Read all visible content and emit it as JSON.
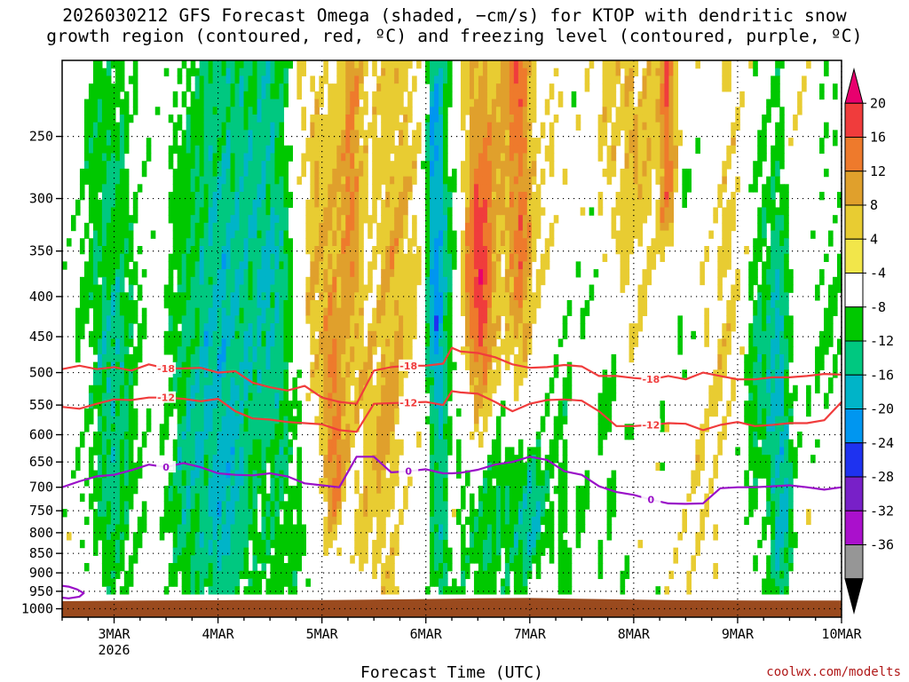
{
  "chart_data": {
    "type": "heatmap",
    "title_line1": "2026030212 GFS Forecast Omega (shaded, −cm/s) for KTOP with dendritic snow",
    "title_line2": "growth region (contoured, red, ºC) and freezing level (contoured, purple, ºC)",
    "xlabel": "Forecast Time (UTC)",
    "ylabel": "",
    "credit": "coolwx.com/modelts",
    "x_range_hours": [
      0,
      180
    ],
    "x_ticks": [
      {
        "label": "3MAR",
        "sub": "2026",
        "hour": 12
      },
      {
        "label": "4MAR",
        "sub": "",
        "hour": 36
      },
      {
        "label": "5MAR",
        "sub": "",
        "hour": 60
      },
      {
        "label": "6MAR",
        "sub": "",
        "hour": 84
      },
      {
        "label": "7MAR",
        "sub": "",
        "hour": 108
      },
      {
        "label": "8MAR",
        "sub": "",
        "hour": 132
      },
      {
        "label": "9MAR",
        "sub": "",
        "hour": 156
      },
      {
        "label": "10MAR",
        "sub": "",
        "hour": 180
      }
    ],
    "y_range_hpa": [
      200,
      1025
    ],
    "y_ticks": [
      250,
      300,
      350,
      400,
      450,
      500,
      550,
      600,
      650,
      700,
      750,
      800,
      850,
      900,
      950,
      1000
    ],
    "colorbar": {
      "labels": [
        "20",
        "16",
        "12",
        "8",
        "4",
        "-4",
        "-8",
        "-12",
        "-16",
        "-20",
        "-24",
        "-28",
        "-32",
        "-36"
      ],
      "colors": [
        "#e8006e",
        "#f03c3c",
        "#ee7a2c",
        "#e0a02c",
        "#e8cc32",
        "#f2e64a",
        "#ffffff",
        "#00c800",
        "#00c880",
        "#00b4c8",
        "#0096f0",
        "#1e32f0",
        "#7820c8",
        "#aa10cc",
        "#969696",
        "#000000"
      ]
    },
    "series": [
      {
        "name": "-18 C isotherm",
        "color": "#f03c3c",
        "label": "-18",
        "hours": [
          0,
          4,
          8,
          12,
          16,
          20,
          24,
          28,
          32,
          36,
          40,
          44,
          48,
          52,
          56,
          60,
          64,
          68,
          72,
          76,
          80,
          84,
          88,
          90,
          92,
          96,
          100,
          104,
          108,
          112,
          116,
          120,
          124,
          128,
          132,
          136,
          140,
          144,
          148,
          152,
          156,
          160,
          164,
          168,
          172,
          176,
          180
        ],
        "hpa": [
          495,
          490,
          495,
          492,
          497,
          488,
          494,
          494,
          493,
          500,
          498,
          515,
          522,
          527,
          520,
          538,
          545,
          548,
          497,
          492,
          490,
          490,
          487,
          465,
          470,
          472,
          478,
          488,
          493,
          492,
          489,
          491,
          505,
          505,
          508,
          510,
          505,
          510,
          500,
          505,
          510,
          510,
          507,
          507,
          505,
          502,
          503
        ]
      },
      {
        "name": "-12 C isotherm",
        "color": "#f03c3c",
        "label": "-12",
        "hours": [
          0,
          4,
          8,
          12,
          16,
          20,
          24,
          28,
          32,
          36,
          40,
          44,
          48,
          52,
          56,
          60,
          64,
          68,
          72,
          76,
          80,
          84,
          88,
          90,
          92,
          96,
          100,
          104,
          108,
          112,
          116,
          120,
          124,
          128,
          132,
          136,
          140,
          144,
          148,
          152,
          156,
          160,
          164,
          168,
          172,
          176,
          180
        ],
        "hpa": [
          553,
          556,
          548,
          541,
          542,
          538,
          538,
          540,
          544,
          540,
          560,
          572,
          574,
          578,
          580,
          582,
          592,
          595,
          548,
          547,
          546,
          545,
          550,
          528,
          530,
          532,
          545,
          560,
          548,
          542,
          541,
          543,
          560,
          585,
          585,
          583,
          580,
          581,
          592,
          583,
          578,
          585,
          583,
          580,
          580,
          575,
          545
        ]
      },
      {
        "name": "0 C freezing level",
        "color": "#9a10c8",
        "label": "0",
        "hours": [
          0,
          4,
          8,
          12,
          16,
          20,
          24,
          28,
          32,
          36,
          40,
          44,
          48,
          52,
          56,
          60,
          64,
          68,
          72,
          76,
          80,
          84,
          88,
          90,
          92,
          96,
          100,
          104,
          108,
          112,
          116,
          120,
          124,
          128,
          132,
          136,
          140,
          144,
          148,
          152,
          156,
          160,
          164,
          168,
          172,
          176,
          180
        ],
        "hpa": [
          700,
          688,
          678,
          675,
          666,
          655,
          660,
          652,
          660,
          672,
          675,
          676,
          672,
          678,
          692,
          696,
          700,
          640,
          640,
          670,
          668,
          664,
          672,
          672,
          671,
          665,
          655,
          650,
          640,
          646,
          668,
          675,
          698,
          710,
          716,
          726,
          734,
          735,
          734,
          702,
          700,
          700,
          698,
          696,
          700,
          705,
          700
        ]
      },
      {
        "name": "0 C near-surface",
        "color": "#9a10c8",
        "label": "",
        "hours": [
          0,
          1.5,
          3.5,
          5,
          4,
          1.5,
          0
        ],
        "hpa": [
          935,
          937,
          945,
          955,
          965,
          970,
          968
        ]
      }
    ]
  }
}
